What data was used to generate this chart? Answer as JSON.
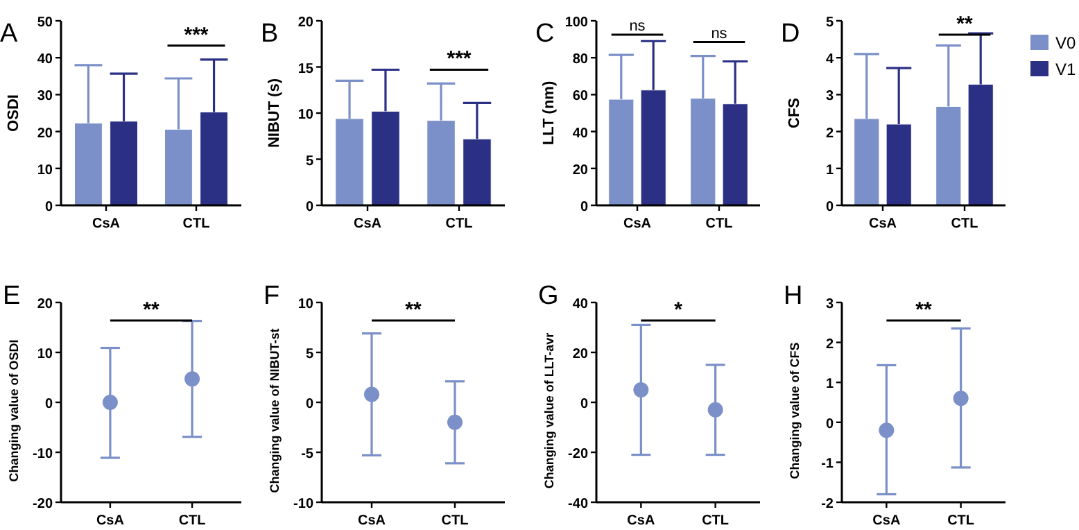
{
  "chart_data": [
    {
      "type": "bar",
      "title": "A",
      "ylabel": "OSDI",
      "categories": [
        "CsA",
        "CTL"
      ],
      "ylim": [
        0,
        50
      ],
      "yticks": [
        0,
        10,
        20,
        30,
        40,
        50
      ],
      "legend": false,
      "annotations": [
        "***"
      ],
      "series": [
        {
          "color": "#7b8fc8",
          "values": [
            22.3,
            20.6
          ],
          "errors": [
            [
              22.3,
              38
            ],
            [
              20.6,
              34.4
            ]
          ]
        },
        {
          "color": "#2b3085",
          "values": [
            22.8,
            25.3
          ],
          "errors": [
            [
              22.8,
              35.7
            ],
            [
              25.3,
              39.5
            ]
          ]
        }
      ]
    },
    {
      "type": "bar",
      "title": "B",
      "ylabel": "NIBUT (s)",
      "categories": [
        "CsA",
        "CTL"
      ],
      "ylim": [
        0,
        20
      ],
      "yticks": [
        0,
        5,
        10,
        15,
        20
      ],
      "legend": false,
      "annotations": [
        "***"
      ],
      "series": [
        {
          "color": "#7b8fc8",
          "values": [
            9.4,
            9.2
          ],
          "errors": [
            [
              9.4,
              13.5
            ],
            [
              9.2,
              13.2
            ]
          ]
        },
        {
          "color": "#2b3085",
          "values": [
            10.2,
            7.2
          ],
          "errors": [
            [
              10.2,
              14.7
            ],
            [
              7.2,
              11.1
            ]
          ]
        }
      ]
    },
    {
      "type": "bar",
      "title": "C",
      "ylabel": "LLT (nm)",
      "categories": [
        "CsA",
        "CTL"
      ],
      "ylim": [
        0,
        100
      ],
      "yticks": [
        0,
        20,
        40,
        60,
        80,
        100
      ],
      "legend": false,
      "annotations": [
        "ns",
        "ns"
      ],
      "series": [
        {
          "color": "#7b8fc8",
          "values": [
            57.5,
            58
          ],
          "errors": [
            [
              57.5,
              81.5
            ],
            [
              58,
              81
            ]
          ]
        },
        {
          "color": "#2b3085",
          "values": [
            62.5,
            55
          ],
          "errors": [
            [
              62.5,
              89
            ],
            [
              55,
              78
            ]
          ]
        }
      ]
    },
    {
      "type": "bar",
      "title": "D",
      "ylabel": "CFS",
      "categories": [
        "CsA",
        "CTL"
      ],
      "ylim": [
        0,
        5
      ],
      "yticks": [
        0,
        1,
        2,
        3,
        4,
        5
      ],
      "legend": "right",
      "annotations": [
        "**"
      ],
      "series": [
        {
          "name": "V0",
          "color": "#7b8fc8",
          "values": [
            2.35,
            2.68
          ],
          "errors": [
            [
              2.35,
              4.1
            ],
            [
              2.68,
              4.33
            ]
          ]
        },
        {
          "name": "V1",
          "color": "#2b3085",
          "values": [
            2.2,
            3.28
          ],
          "errors": [
            [
              2.2,
              3.72
            ],
            [
              3.28,
              4.66
            ]
          ]
        }
      ]
    },
    {
      "type": "scatter",
      "title": "E",
      "ylabel": "Changing value of OSDI",
      "categories": [
        "CsA",
        "CTL"
      ],
      "ylim": [
        -20,
        20
      ],
      "yticks": [
        -20,
        -10,
        0,
        10,
        20
      ],
      "marker": "circle",
      "annotations": [
        "**"
      ],
      "series": [
        {
          "color": "#7b8fc8",
          "values": [
            0,
            4.7
          ],
          "errors": [
            [
              -11.1,
              10.9
            ],
            [
              -6.9,
              16.3
            ]
          ]
        }
      ]
    },
    {
      "type": "scatter",
      "title": "F",
      "ylabel": "Changing value of NIBUT-st",
      "categories": [
        "CsA",
        "CTL"
      ],
      "ylim": [
        -10,
        10
      ],
      "yticks": [
        -10,
        -5,
        0,
        5,
        10
      ],
      "marker": "circle",
      "annotations": [
        "**"
      ],
      "series": [
        {
          "color": "#7b8fc8",
          "values": [
            0.8,
            -2.0
          ],
          "errors": [
            [
              -5.3,
              6.9
            ],
            [
              -6.1,
              2.1
            ]
          ]
        }
      ]
    },
    {
      "type": "scatter",
      "title": "G",
      "ylabel": "Changing value of LLT-avr",
      "categories": [
        "CsA",
        "CTL"
      ],
      "ylim": [
        -40,
        40
      ],
      "yticks": [
        -40,
        -20,
        0,
        20,
        40
      ],
      "marker": "circle",
      "annotations": [
        "*"
      ],
      "series": [
        {
          "color": "#7b8fc8",
          "values": [
            5,
            -3
          ],
          "errors": [
            [
              -21,
              31
            ],
            [
              -21,
              15
            ]
          ]
        }
      ]
    },
    {
      "type": "scatter",
      "title": "H",
      "ylabel": "Changing value of CFS",
      "categories": [
        "CsA",
        "CTL"
      ],
      "ylim": [
        -2,
        3
      ],
      "yticks": [
        -2,
        -1,
        0,
        1,
        2,
        3
      ],
      "marker": "circle",
      "annotations": [
        "**"
      ],
      "series": [
        {
          "color": "#7b8fc8",
          "values": [
            -0.2,
            0.6
          ],
          "errors": [
            [
              -1.8,
              1.43
            ],
            [
              -1.13,
              2.35
            ]
          ]
        }
      ]
    }
  ]
}
